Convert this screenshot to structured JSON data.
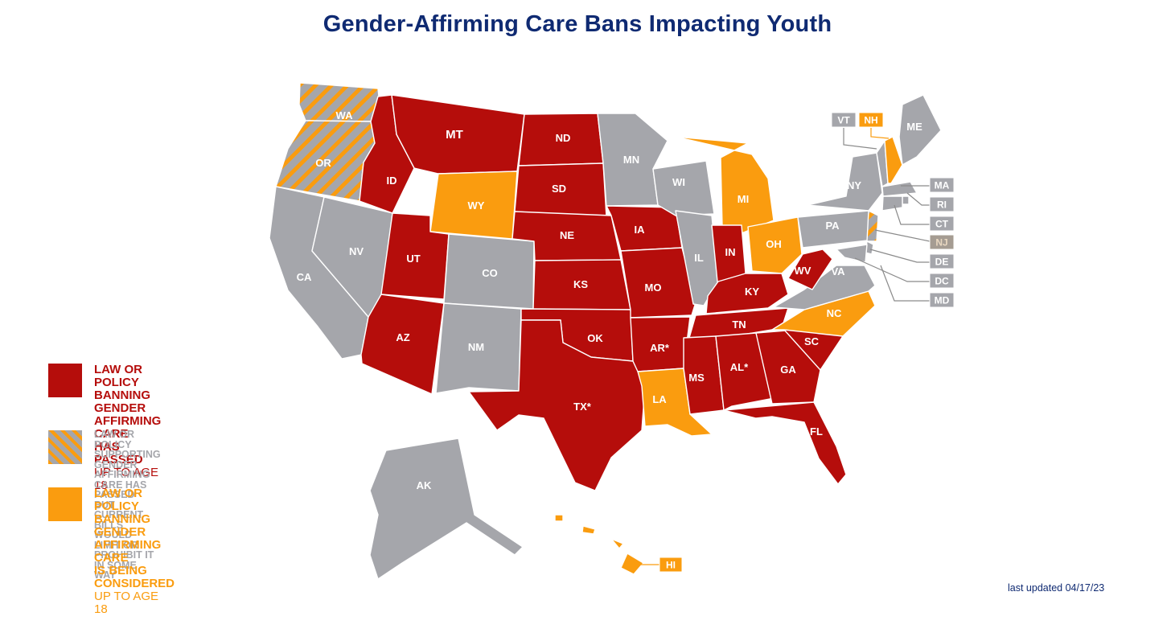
{
  "title": "Gender-Affirming Care Bans Impacting Youth",
  "colors": {
    "banned": "#b50d0b",
    "considered": "#fa9c0f",
    "supporting_limited": "#a5a6ab",
    "none": "#a5a6ab",
    "title": "#0f2a72",
    "callout_border": "#8a8a8a"
  },
  "legend": [
    {
      "status": "banned",
      "label_lines": [
        "LAW OR POLICY BANNING",
        "GENDER AFFIRMING CARE",
        "HAS PASSED"
      ],
      "sub": "UP TO AGE 18"
    },
    {
      "status": "supporting_limited",
      "label_lines": [
        "LAW OR POLICY SUPPORTING",
        "GENDER AFFIRMING CARE HAS PASSED",
        "BUT CURRENT BILLS WOULD LIMIT OR",
        "PROHIBIT IT IN SOME WAY"
      ],
      "sub": ""
    },
    {
      "status": "considered",
      "label_lines": [
        "LAW OR POLICY BANNING",
        "GENDER AFFIRMING CARE",
        "IS BEING CONSIDERED"
      ],
      "sub": "UP TO AGE 18"
    }
  ],
  "states": [
    {
      "abbr": "WA",
      "status": "supporting_limited"
    },
    {
      "abbr": "OR",
      "status": "supporting_limited"
    },
    {
      "abbr": "CA",
      "status": "none"
    },
    {
      "abbr": "NV",
      "status": "none"
    },
    {
      "abbr": "ID",
      "status": "banned"
    },
    {
      "abbr": "MT",
      "status": "banned"
    },
    {
      "abbr": "WY",
      "status": "considered"
    },
    {
      "abbr": "UT",
      "status": "banned"
    },
    {
      "abbr": "CO",
      "status": "none"
    },
    {
      "abbr": "AZ",
      "status": "banned"
    },
    {
      "abbr": "NM",
      "status": "none"
    },
    {
      "abbr": "ND",
      "status": "banned"
    },
    {
      "abbr": "SD",
      "status": "banned"
    },
    {
      "abbr": "NE",
      "status": "banned"
    },
    {
      "abbr": "KS",
      "status": "banned"
    },
    {
      "abbr": "OK",
      "status": "banned"
    },
    {
      "abbr": "TX*",
      "status": "banned"
    },
    {
      "abbr": "MN",
      "status": "none"
    },
    {
      "abbr": "IA",
      "status": "banned"
    },
    {
      "abbr": "MO",
      "status": "banned"
    },
    {
      "abbr": "AR*",
      "status": "banned"
    },
    {
      "abbr": "LA",
      "status": "considered"
    },
    {
      "abbr": "WI",
      "status": "none"
    },
    {
      "abbr": "IL",
      "status": "none"
    },
    {
      "abbr": "MI",
      "status": "considered"
    },
    {
      "abbr": "IN",
      "status": "banned"
    },
    {
      "abbr": "OH",
      "status": "considered"
    },
    {
      "abbr": "KY",
      "status": "banned"
    },
    {
      "abbr": "TN",
      "status": "banned"
    },
    {
      "abbr": "MS",
      "status": "banned"
    },
    {
      "abbr": "AL*",
      "status": "banned"
    },
    {
      "abbr": "GA",
      "status": "banned"
    },
    {
      "abbr": "FL",
      "status": "banned"
    },
    {
      "abbr": "SC",
      "status": "banned"
    },
    {
      "abbr": "NC",
      "status": "considered"
    },
    {
      "abbr": "VA",
      "status": "none"
    },
    {
      "abbr": "WV",
      "status": "banned"
    },
    {
      "abbr": "PA",
      "status": "none"
    },
    {
      "abbr": "NY",
      "status": "none"
    },
    {
      "abbr": "ME",
      "status": "none"
    },
    {
      "abbr": "AK",
      "status": "none"
    },
    {
      "abbr": "HI",
      "status": "considered"
    },
    {
      "abbr": "VT",
      "status": "none"
    },
    {
      "abbr": "NH",
      "status": "considered"
    },
    {
      "abbr": "MA",
      "status": "none"
    },
    {
      "abbr": "RI",
      "status": "none"
    },
    {
      "abbr": "CT",
      "status": "none"
    },
    {
      "abbr": "NJ",
      "status": "supporting_limited"
    },
    {
      "abbr": "DE",
      "status": "none"
    },
    {
      "abbr": "DC",
      "status": "none"
    },
    {
      "abbr": "MD",
      "status": "none"
    }
  ],
  "footer": "last updated 04/17/23"
}
